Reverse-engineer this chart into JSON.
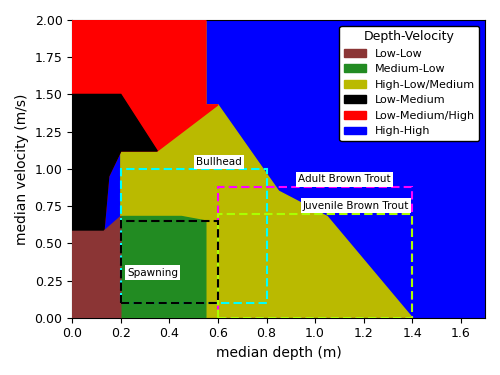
{
  "xlim": [
    0.0,
    1.7
  ],
  "ylim": [
    0.0,
    2.0
  ],
  "xlabel": "median depth (m)",
  "ylabel": "median velocity (m/s)",
  "legend_title": "Depth-Velocity",
  "legend_entries": [
    {
      "label": "Low-Low",
      "color": "#8B3535"
    },
    {
      "label": "Medium-Low",
      "color": "#228B22"
    },
    {
      "label": "High-Low/Medium",
      "color": "#BABA00"
    },
    {
      "label": "Low-Medium",
      "color": "#000000"
    },
    {
      "label": "Low-Medium/High",
      "color": "#FF0000"
    },
    {
      "label": "High-High",
      "color": "#0000FF"
    }
  ],
  "xlim_vals": [
    0.0,
    1.7
  ],
  "ylim_vals": [
    0.0,
    2.0
  ],
  "xticks": [
    0.0,
    0.2,
    0.4,
    0.6,
    0.8,
    1.0,
    1.2,
    1.4,
    1.6
  ],
  "yticks": [
    0.0,
    0.25,
    0.5,
    0.75,
    1.0,
    1.25,
    1.5,
    1.75,
    2.0
  ],
  "background_color": "#FFFFFF",
  "figsize": [
    5.0,
    3.75
  ],
  "dpi": 100
}
